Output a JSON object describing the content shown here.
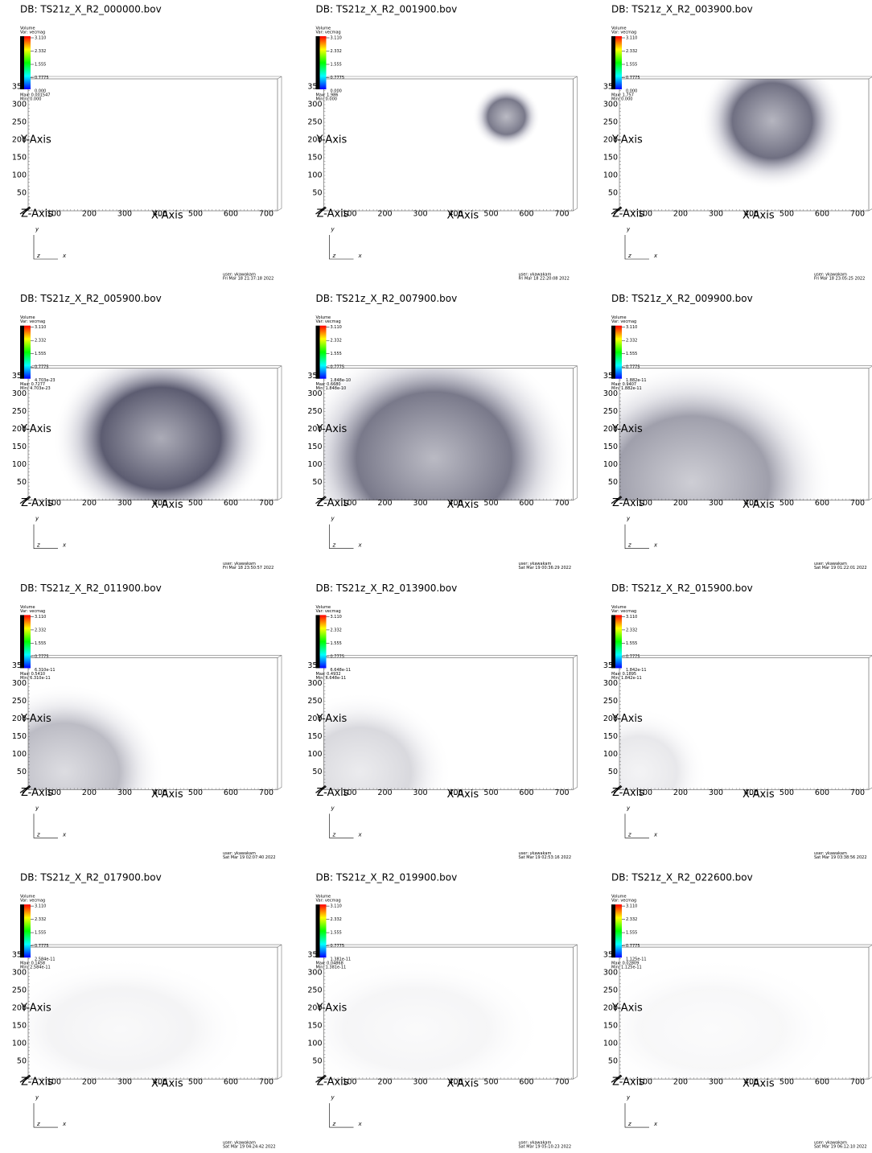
{
  "common": {
    "legend_title": "Volume",
    "var": "Var: vecmag",
    "legend_ticks": [
      "3.110",
      "2.332",
      "1.555",
      "0.7775"
    ],
    "y_axis": "Y-Axis",
    "x_axis": "X-Axis",
    "z_axis": "Z-Axis",
    "yticks": [
      "50",
      "100",
      "150",
      "200",
      "250",
      "300",
      "350"
    ],
    "xticks": [
      "100",
      "200",
      "300",
      "400",
      "500",
      "600",
      "700"
    ],
    "triad": [
      "y",
      "z",
      "x"
    ],
    "user": "user: ykawakam"
  },
  "panels": [
    {
      "db": "DB: TS21z_X_R2_000000.bov",
      "low": "0.000",
      "max": "Max: 0.001547",
      "min": "Min: 0.000",
      "date": "Fri Mar 18 21:37:18 2022"
    },
    {
      "db": "DB: TS21z_X_R2_001900.bov",
      "low": "0.000",
      "max": "Max: 1.986",
      "min": "Min: 0.000",
      "date": "Fri Mar 18 22:20:08 2022"
    },
    {
      "db": "DB: TS21z_X_R2_003900.bov",
      "low": "0.000",
      "max": "Max: 1.757",
      "min": "Min: 0.000",
      "date": "Fri Mar 18 23:05:25 2022"
    },
    {
      "db": "DB: TS21z_X_R2_005900.bov",
      "low": "4.703e-23",
      "max": "Max: 0.7277",
      "min": "Min: 4.703e-23",
      "date": "Fri Mar 18 23:50:57 2022"
    },
    {
      "db": "DB: TS21z_X_R2_007900.bov",
      "low": "1.848e-10",
      "max": "Max: 0.6680",
      "min": "Min: 1.848e-10",
      "date": "Sat Mar 19 00:36:29 2022"
    },
    {
      "db": "DB: TS21z_X_R2_009900.bov",
      "low": "1.882e-11",
      "max": "Max: 0.9407",
      "min": "Min: 1.882e-11",
      "date": "Sat Mar 19 01:22:01 2022"
    },
    {
      "db": "DB: TS21z_X_R2_011900.bov",
      "low": "6.310e-11",
      "max": "Max: 0.5410",
      "min": "Min: 6.310e-11",
      "date": "Sat Mar 19 02:07:40 2022"
    },
    {
      "db": "DB: TS21z_X_R2_013900.bov",
      "low": "6.648e-11",
      "max": "Max: 0.4932",
      "min": "Min: 6.648e-11",
      "date": "Sat Mar 19 02:53:16 2022"
    },
    {
      "db": "DB: TS21z_X_R2_015900.bov",
      "low": "1.842e-11",
      "max": "Max: 0.1895",
      "min": "Min: 1.842e-11",
      "date": "Sat Mar 19 03:38:56 2022"
    },
    {
      "db": "DB: TS21z_X_R2_017900.bov",
      "low": "2.584e-11",
      "max": "Max: 0.1458",
      "min": "Min: 2.584e-11",
      "date": "Sat Mar 19 04:24:42 2022"
    },
    {
      "db": "DB: TS21z_X_R2_019900.bov",
      "low": "1.381e-11",
      "max": "Max: 0.04868",
      "min": "Min: 1.381e-11",
      "date": "Sat Mar 19 05:10:23 2022"
    },
    {
      "db": "DB: TS21z_X_R2_022600.bov",
      "low": "1.125e-11",
      "max": "Max: 0.02809",
      "min": "Min: 1.125e-11",
      "date": "Sat Mar 19 06:12:10 2022"
    }
  ]
}
